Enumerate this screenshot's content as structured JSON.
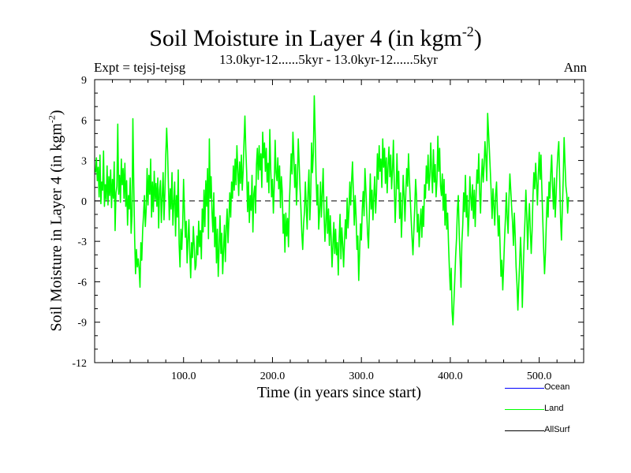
{
  "chart_data": {
    "type": "line",
    "title": "Soil Moisture in Layer 4 (in kgm",
    "title_superscript": "-2",
    "title_suffix": ")",
    "experiment": "Expt = tejsj-tejsg",
    "subtitle": "13.0kyr-12......5kyr - 13.0kyr-12......5kyr",
    "season": "Ann",
    "xlabel": "Time (in years since start)",
    "ylabel": "Soil Moisture in Layer 4 (in kgm",
    "ylabel_superscript": "-2",
    "ylabel_suffix": ")",
    "xlim": [
      0,
      550
    ],
    "ylim": [
      -12,
      9
    ],
    "xticks": [
      100,
      200,
      300,
      400,
      500
    ],
    "xtick_labels": [
      "100.0",
      "200.0",
      "300.0",
      "400.0",
      "500.0"
    ],
    "yticks": [
      9,
      6,
      3,
      0,
      -3,
      -6,
      -9,
      -12
    ],
    "ytick_labels": [
      "9",
      "6",
      "3",
      "0",
      "-3",
      "-6",
      "-9",
      "-12"
    ],
    "zero_line": "dashed",
    "legend": [
      {
        "name": "Ocean",
        "color": "#0000ff"
      },
      {
        "name": "Land",
        "color": "#00ff00"
      },
      {
        "name": "AllSurf",
        "color": "#000000"
      }
    ],
    "series": [
      {
        "name": "Land",
        "color": "#00ff00",
        "x_start": 1,
        "x_step": 1,
        "values": [
          2.1,
          3.2,
          1.5,
          2.5,
          0.3,
          3.4,
          -0.2,
          1.4,
          0.8,
          3.7,
          -0.4,
          1.2,
          0.1,
          2.6,
          -0.3,
          1.8,
          0.4,
          2.3,
          -0.5,
          1.6,
          0.2,
          2.9,
          -2.2,
          0.6,
          1.1,
          5.7,
          0.5,
          1.9,
          -0.1,
          3.1,
          1.2,
          2.4,
          0.2,
          2.8,
          -0.4,
          1.5,
          -1.8,
          0.4,
          -0.6,
          1.7,
          -2.4,
          -1.1,
          6.1,
          1.2,
          -2.8,
          -5.4,
          -3.6,
          -4.9,
          -4.3,
          -5.0,
          -6.4,
          -3.1,
          -4.4,
          -2.2,
          -1.0,
          0.4,
          -1.9,
          -0.6,
          2.4,
          -0.3,
          1.9,
          0.5,
          3.1,
          -1.2,
          1.4,
          -0.8,
          2.2,
          0.1,
          1.3,
          -0.4,
          1.7,
          -2.0,
          0.8,
          1.5,
          -1.6,
          0.3,
          2.1,
          -1.4,
          0.6,
          3.4,
          5.4,
          3.7,
          1.1,
          -1.4,
          0.9,
          -0.6,
          2.1,
          -1.8,
          -0.2,
          1.4,
          -2.6,
          0.4,
          -1.2,
          2.3,
          -3.2,
          -4.9,
          -2.1,
          -3.6,
          -1.8,
          1.6,
          -0.8,
          -2.7,
          -1.5,
          -4.6,
          -2.9,
          -1.4,
          -3.8,
          -5.7,
          -3.1,
          -4.2,
          -1.9,
          -3.3,
          -5.1,
          -4.8,
          -2.6,
          -4.0,
          -1.5,
          -3.4,
          -2.2,
          -4.3,
          -0.6,
          -2.3,
          0.8,
          -1.9,
          1.5,
          -0.4,
          2.4,
          -2.8,
          4.6,
          0.2,
          1.8,
          -0.9,
          -2.3,
          0.6,
          -3.4,
          -1.2,
          -4.6,
          -2.1,
          -5.6,
          -3.5,
          -1.1,
          -3.9,
          -2.4,
          -5.4,
          -3.6,
          -1.8,
          -4.5,
          -2.0,
          -0.6,
          -3.1,
          -1.4,
          0.6,
          -1.2,
          1.4,
          0.2,
          2.6,
          0.8,
          3.1,
          1.2,
          4.1,
          2.3,
          0.4,
          2.9,
          1.3,
          3.4,
          0.8,
          2.2,
          4.4,
          6.3,
          3.8,
          2.1,
          -0.8,
          1.4,
          -1.6,
          0.4,
          -0.7,
          1.9,
          -2.3,
          0.5,
          1.1,
          -0.9,
          2.7,
          3.9,
          1.6,
          4.1,
          2.3,
          3.5,
          1.0,
          5.1,
          3.2,
          4.3,
          2.2,
          3.9,
          1.4,
          2.8,
          0.6,
          5.3,
          2.4,
          0.3,
          1.6,
          -0.9,
          1.1,
          4.5,
          2.1,
          1.5,
          3.2,
          0.9,
          2.6,
          -0.5,
          1.8,
          0.7,
          -2.4,
          -1.0,
          -3.8,
          -0.9,
          -2.6,
          -1.3,
          -3.4,
          -0.2,
          1.6,
          3.5,
          2.0,
          5.1,
          3.4,
          1.0,
          2.7,
          -0.3,
          1.5,
          4.6,
          2.8,
          0.9,
          -0.6,
          -2.4,
          -3.6,
          -1.7,
          -0.8,
          1.4,
          -0.5,
          -2.1,
          0.7,
          2.3,
          -1.4,
          0.4,
          4.3,
          2.1,
          3.6,
          7.8,
          5.1,
          1.9,
          -0.3,
          1.2,
          -2.1,
          -0.8,
          1.4,
          -1.2,
          0.6,
          2.4,
          -0.9,
          -3.0,
          -1.6,
          0.3,
          -2.4,
          -0.6,
          -3.3,
          -1.1,
          -2.7,
          -4.9,
          -3.2,
          -1.6,
          -3.9,
          -2.1,
          -4.0,
          -3.1,
          -5.5,
          -2.8,
          -1.0,
          -4.3,
          -2.0,
          -3.2,
          -4.9,
          -3.0,
          -1.4,
          -2.8,
          0.2,
          -2.0,
          -0.8,
          1.4,
          -0.3,
          1.5,
          2.9,
          0.6,
          -1.8,
          0.4,
          -1.1,
          -3.6,
          -2.6,
          -5.9,
          -3.8,
          -1.7,
          -2.9,
          -0.6,
          0.7,
          -1.1,
          2.4,
          0.9,
          -0.8,
          -2.5,
          -3.5,
          -0.8,
          2.0,
          -0.6,
          0.8,
          -1.4,
          0.4,
          1.8,
          -0.9,
          0.6,
          3.5,
          1.6,
          4.1,
          2.2,
          3.1,
          1.0,
          4.6,
          2.5,
          3.9,
          1.3,
          3.2,
          0.6,
          2.6,
          4.0,
          1.8,
          3.4,
          0.9,
          2.3,
          4.5,
          1.2,
          -1.6,
          0.4,
          3.5,
          0.9,
          2.2,
          -1.3,
          0.6,
          -2.7,
          -0.8,
          1.9,
          0.4,
          -1.5,
          0.7,
          2.4,
          1.1,
          3.5,
          1.6,
          0.1,
          -1.4,
          -2.8,
          -4.0,
          -2.2,
          -0.5,
          1.6,
          0.4,
          -2.3,
          -1.0,
          -3.4,
          -1.8,
          -0.6,
          -2.7,
          -0.4,
          -1.9,
          1.2,
          0.2,
          2.6,
          1.3,
          3.4,
          0.8,
          1.9,
          4.3,
          2.1,
          0.6,
          3.8,
          1.4,
          2.7,
          0.3,
          1.5,
          4.8,
          2.2,
          3.9,
          1.1,
          0.4,
          2.0,
          -0.7,
          1.6,
          -1.8,
          0.5,
          -2.1,
          -0.9,
          -3.2,
          -5.1,
          -6.6,
          -5.0,
          -8.2,
          -9.2,
          -7.6,
          -5.9,
          -4.1,
          -2.8,
          -0.6,
          0.4,
          -2.4,
          -4.3,
          -6.4,
          -3.1,
          -1.8,
          0.6,
          -0.8,
          1.9,
          -1.2,
          0.4,
          -2.6,
          -1.1,
          1.8,
          0.3,
          -0.7,
          1.2,
          -1.3,
          0.8,
          -1.9,
          0.5,
          2.3,
          1.3,
          3.5,
          0.6,
          -0.9,
          1.6,
          3.1,
          1.4,
          2.6,
          4.4,
          3.2,
          1.5,
          6.5,
          5.1,
          3.7,
          2.2,
          0.6,
          -1.3,
          0.9,
          -0.4,
          -1.8,
          0.5,
          1.4,
          -0.9,
          -2.6,
          -1.1,
          -3.4,
          -5.6,
          -4.4,
          -6.6,
          -4.8,
          -2.9,
          -1.3,
          0.6,
          -1.2,
          -2.4,
          0.2,
          2.0,
          0.8,
          -0.5,
          -1.6,
          -3.3,
          -0.9,
          -2.6,
          -4.9,
          -6.2,
          -8.1,
          -6.2,
          -4.6,
          -2.7,
          -4.4,
          -7.9,
          -5.3,
          -3.1,
          -1.4,
          0.8,
          -1.0,
          -3.6,
          -1.6,
          -0.2,
          -2.2,
          -3.9,
          -2.2,
          0.4,
          2.1,
          0.9,
          2.8,
          1.4,
          -0.3,
          1.9,
          3.6,
          1.6,
          3.4,
          0.8,
          -1.4,
          -3.6,
          -5.4,
          -3.9,
          -1.6,
          0.3,
          -1.2,
          1.4,
          0.2,
          2.1,
          3.4,
          1.1,
          -0.6,
          1.7,
          -1.2,
          0.4,
          2.3,
          3.6,
          4.4,
          1.7,
          -1.3,
          -2.9,
          -0.6,
          1.6,
          4.7,
          2.8,
          1.1,
          0.5,
          -0.9,
          0.3
        ]
      }
    ]
  }
}
